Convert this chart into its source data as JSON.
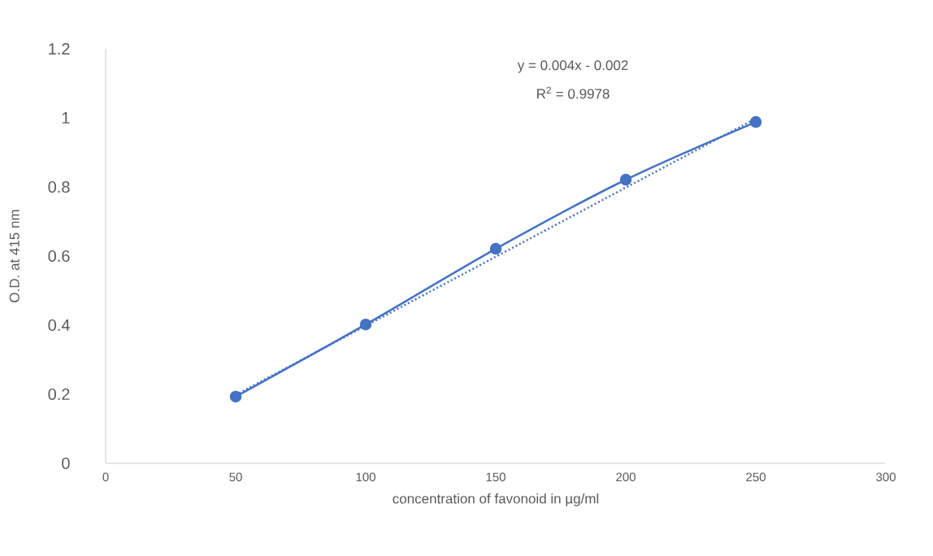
{
  "chart_data": {
    "type": "line",
    "xlabel": "concentration of favonoid in µg/ml",
    "ylabel": "O.D. at 415 nm",
    "annotations": [
      "y = 0.004x - 0.002",
      "R$^{2}$ = 0.9978"
    ],
    "x": [
      50,
      100,
      150,
      200,
      250
    ],
    "series": [
      {
        "color": "#4472c4",
        "values": [
          0.193,
          0.402,
          0.621,
          0.821,
          0.988
        ],
        "marker": "circle",
        "line_style": "solid"
      },
      {
        "type": "line",
        "color": "#4472c4",
        "x": [
          50,
          250
        ],
        "values": [
          0.198,
          0.998
        ],
        "marker": "none",
        "line_style": "dotted"
      }
    ],
    "xlim": [
      0,
      300
    ],
    "xticks": [
      0,
      50,
      100,
      150,
      200,
      250,
      300
    ],
    "ylim": [
      0,
      1.2
    ],
    "yticks": [
      0,
      0.2,
      0.4,
      0.6,
      0.8,
      1,
      1.2
    ]
  }
}
